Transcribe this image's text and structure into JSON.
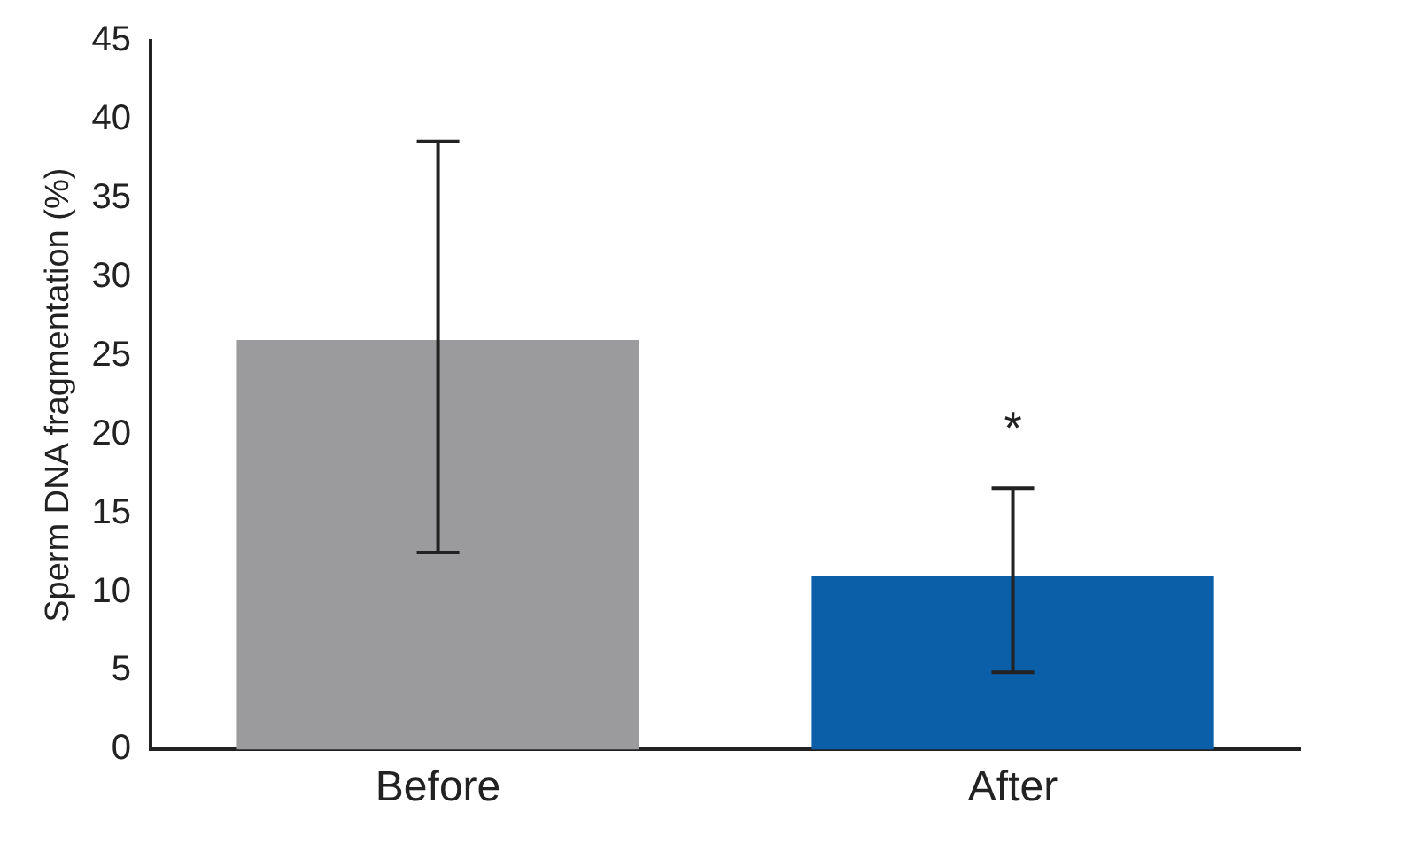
{
  "chart_data": {
    "type": "bar",
    "ylabel": "Sperm DNA fragmentation (%)",
    "categories": [
      "Before",
      "After"
    ],
    "values": [
      26,
      11
    ],
    "colors": [
      "#9b9b9d",
      "#0a5fa8"
    ],
    "errors": [
      [
        12.5,
        38.6
      ],
      [
        4.9,
        16.6
      ]
    ],
    "ylim": [
      0,
      45
    ],
    "yticks": [
      0,
      5,
      10,
      15,
      20,
      25,
      30,
      35,
      40,
      45
    ],
    "grid": false,
    "annotations": [
      "*"
    ]
  }
}
